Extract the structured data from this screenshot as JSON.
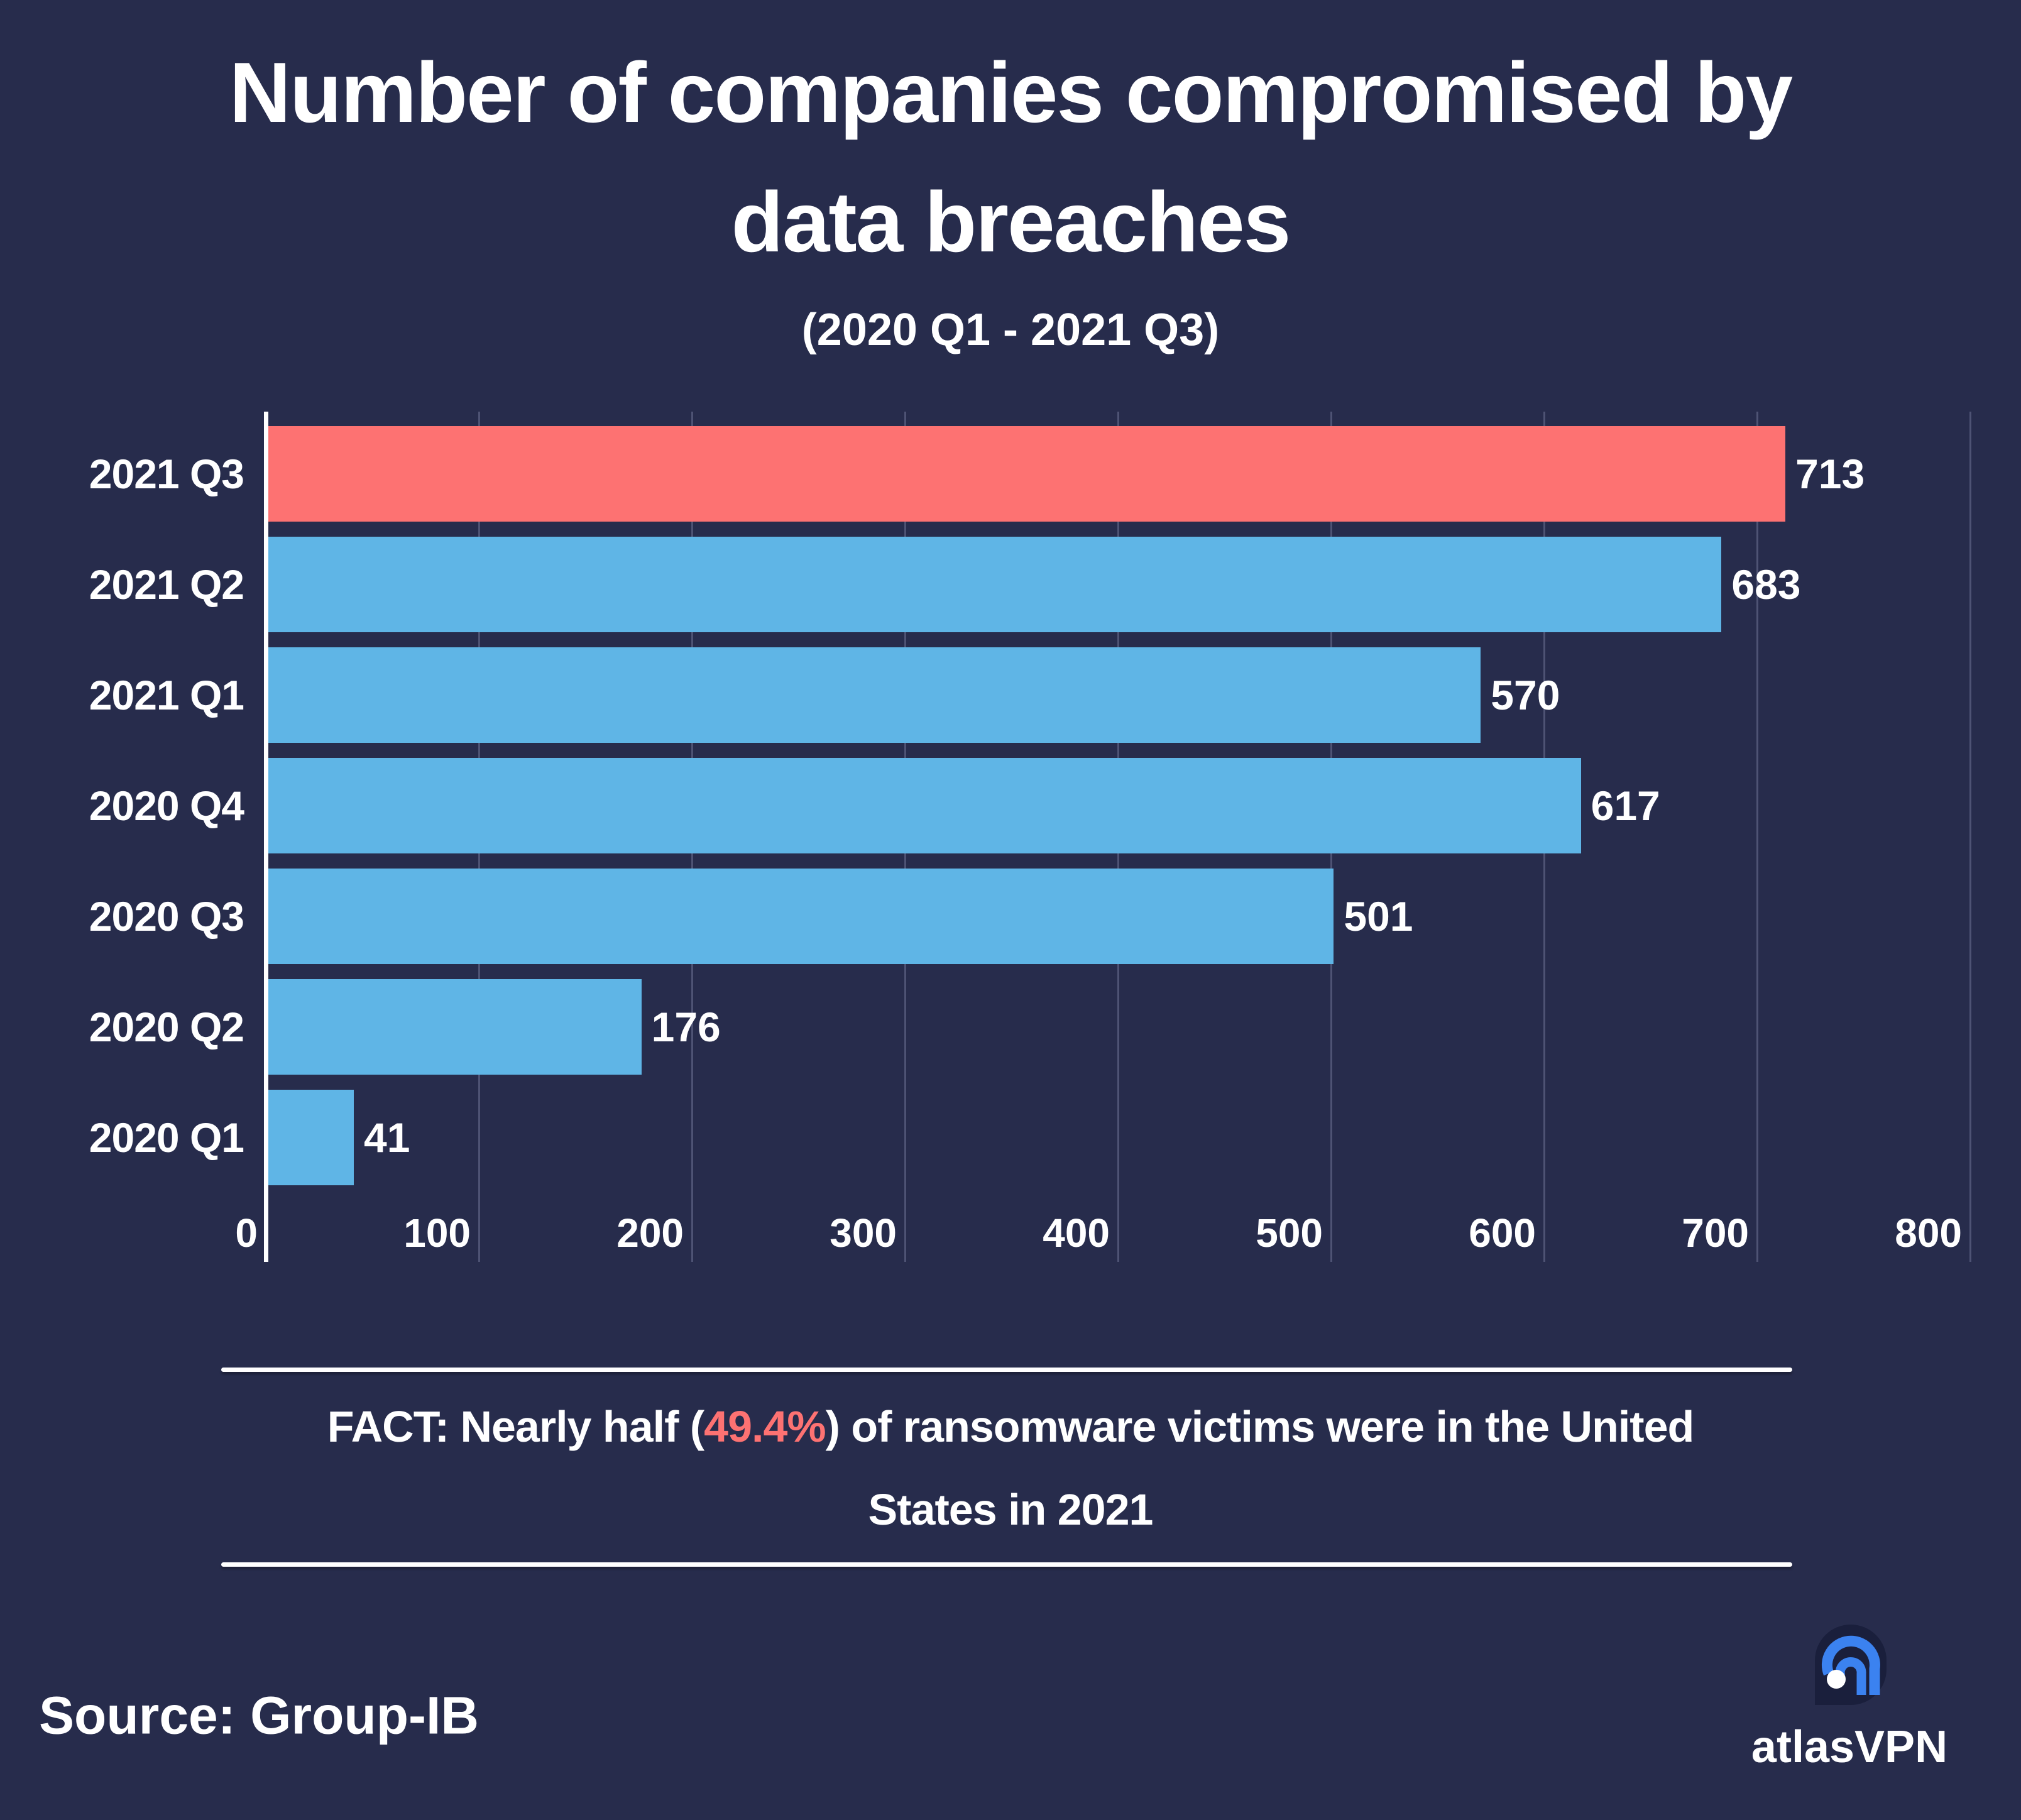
{
  "title": {
    "line1": "Number of companies compromised by",
    "line2": "data breaches",
    "subtitle": "(2020 Q1 - 2021 Q3)"
  },
  "chart_data": {
    "type": "bar",
    "orientation": "horizontal",
    "title": "Number of companies compromised by data breaches",
    "subtitle": "(2020 Q1 - 2021 Q3)",
    "categories": [
      "2021 Q3",
      "2021 Q2",
      "2021 Q1",
      "2020 Q4",
      "2020 Q3",
      "2020 Q2",
      "2020 Q1"
    ],
    "values": [
      713,
      683,
      570,
      617,
      501,
      176,
      41
    ],
    "x_ticks": [
      0,
      100,
      200,
      300,
      400,
      500,
      600,
      700,
      800
    ],
    "xlim": [
      0,
      800
    ],
    "grid": true,
    "legend": false,
    "value_labels": true,
    "bar_color": "#5FB5E6",
    "highlight_index": 0,
    "highlight_color": "#FD7272"
  },
  "fact": {
    "lead": "FACT: Nearly half (",
    "highlight": "49.4%",
    "rest": ") of ransomware victims were in the United",
    "line2": "States in 2021"
  },
  "source_label": "Source: Group-IB",
  "brand": {
    "wordmark_light": "atlas",
    "wordmark_bold": "VPN"
  },
  "colors": {
    "background": "#272C4C",
    "text": "#FFFFFF",
    "grid_line": "#4E5374",
    "bar_blue": "#5FB5E6",
    "bar_red": "#FD7272",
    "logo_pin": "#1A1F3C",
    "logo_arc": "#3B82F0",
    "logo_dot": "#FFFFFF"
  }
}
